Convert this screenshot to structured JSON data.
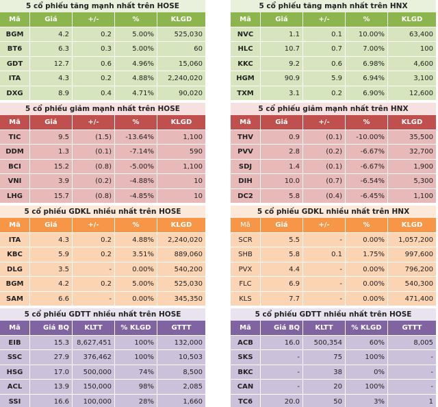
{
  "panels": [
    {
      "title": "5 cổ phiếu tăng mạnh nhất trên HOSE",
      "headers": [
        "Mã",
        "Giá",
        "+/-",
        "%",
        "KLGD"
      ],
      "rows": [
        [
          "BGM",
          "4.2",
          "0.2",
          "5.00%",
          "525,030"
        ],
        [
          "BT6",
          "6.3",
          "0.3",
          "5.00%",
          "60"
        ],
        [
          "GDT",
          "12.7",
          "0.6",
          "4.96%",
          "15,060"
        ],
        [
          "ITA",
          "4.3",
          "0.2",
          "4.88%",
          "2,240,020"
        ],
        [
          "DXG",
          "8.9",
          "0.4",
          "4.71%",
          "90,020"
        ]
      ]
    },
    {
      "title": "5 cổ phiếu tăng mạnh nhất trên HNX",
      "headers": [
        "Mã",
        "Giá",
        "+/-",
        "%",
        "KLGD"
      ],
      "rows": [
        [
          "NVC",
          "1.1",
          "0.1",
          "10.00%",
          "63,400"
        ],
        [
          "HLC",
          "10.7",
          "0.7",
          "7.00%",
          "100"
        ],
        [
          "KKC",
          "9.2",
          "0.6",
          "6.98%",
          "4,600"
        ],
        [
          "HGM",
          "90.9",
          "5.9",
          "6.94%",
          "3,100"
        ],
        [
          "TXM",
          "3.1",
          "0.2",
          "6.90%",
          "12,600"
        ]
      ]
    },
    {
      "title": "5 cổ phiếu giảm mạnh nhất trên HOSE",
      "headers": [
        "Mã",
        "Giá",
        "+/-",
        "%",
        "KLGD"
      ],
      "rows": [
        [
          "TIC",
          "9.5",
          "(1.5)",
          "-13.64%",
          "1,100"
        ],
        [
          "DDM",
          "1.3",
          "(0.1)",
          "-7.14%",
          "590"
        ],
        [
          "BCI",
          "15.2",
          "(0.8)",
          "-5.00%",
          "1,100"
        ],
        [
          "VNI",
          "3.9",
          "(0.2)",
          "-4.88%",
          "10"
        ],
        [
          "LHG",
          "15.7",
          "(0.8)",
          "-4.85%",
          "10"
        ]
      ]
    },
    {
      "title": "5 cổ phiếu giảm mạnh nhất trên HNX",
      "headers": [
        "Mã",
        "Giá",
        "+/-",
        "%",
        "KLGD"
      ],
      "rows": [
        [
          "THV",
          "0.9",
          "(0.1)",
          "-10.00%",
          "35,500"
        ],
        [
          "PVV",
          "2.8",
          "(0.2)",
          "-6.67%",
          "32,700"
        ],
        [
          "SDJ",
          "1.4",
          "(0.1)",
          "-6.67%",
          "1,900"
        ],
        [
          "DIH",
          "10.0",
          "(0.7)",
          "-6.54%",
          "5,300"
        ],
        [
          "DC2",
          "5.8",
          "(0.4)",
          "-6.45%",
          "1,100"
        ]
      ]
    },
    {
      "title": "5 cổ phiếu GDKL nhiều nhất trên HOSE",
      "headers": [
        "Mã",
        "Giá",
        "+/-",
        "%",
        "KLGD"
      ],
      "rows": [
        [
          "ITA",
          "4.3",
          "0.2",
          "4.88%",
          "2,240,020"
        ],
        [
          "KBC",
          "5.9",
          "0.2",
          "3.51%",
          "889,060"
        ],
        [
          "DLG",
          "3.5",
          "-",
          "0.00%",
          "540,200"
        ],
        [
          "BGM",
          "4.2",
          "0.2",
          "5.00%",
          "525,030"
        ],
        [
          "SAM",
          "6.6",
          "-",
          "0.00%",
          "345,350"
        ]
      ]
    },
    {
      "title": "5 cổ phiếu GDKL nhiều nhất trên HNX",
      "headers": [
        "Mã",
        "Giá",
        "+/-",
        "%",
        "KLGD"
      ],
      "rows": [
        [
          "SCR",
          "5.5",
          "-",
          "0.00%",
          "1,057,200"
        ],
        [
          "SHB",
          "5.8",
          "0.1",
          "1.75%",
          "997,600"
        ],
        [
          "PVX",
          "4.4",
          "-",
          "0.00%",
          "796,200"
        ],
        [
          "FLC",
          "6.9",
          "-",
          "0.00%",
          "540,300"
        ],
        [
          "KLS",
          "7.7",
          "-",
          "0.00%",
          "471,400"
        ]
      ]
    },
    {
      "title": "5 cổ phiếu GDTT nhiều nhất trên HOSE",
      "headers": [
        "Mã",
        "Giá BQ",
        "KLTT",
        "% KLGD",
        "GTTT"
      ],
      "rows": [
        [
          "EIB",
          "15.3",
          "8,627,451",
          "100%",
          "132,000"
        ],
        [
          "SSC",
          "27.9",
          "376,462",
          "100%",
          "10,503"
        ],
        [
          "HSG",
          "17.0",
          "500,000",
          "74%",
          "8,500"
        ],
        [
          "ACL",
          "13.9",
          "150,000",
          "98%",
          "2,085"
        ],
        [
          "SSI",
          "16.6",
          "100,000",
          "28%",
          "1,660"
        ]
      ]
    },
    {
      "title": "5 cổ phiếu GDTT nhiều nhất trên HOSE",
      "headers": [
        "Mã",
        "Giá BQ",
        "KLTT",
        "% KLGD",
        "GTTT"
      ],
      "rows": [
        [
          "ACB",
          "16.0",
          "500,354",
          "60%",
          "8,005"
        ],
        [
          "SKS",
          "-",
          "75",
          "100%",
          "-"
        ],
        [
          "BKC",
          "-",
          "38",
          "0%",
          "-"
        ],
        [
          "CAN",
          "-",
          "20",
          "100%",
          "-"
        ],
        [
          "TC6",
          "20.0",
          "50",
          "3%",
          "1"
        ]
      ]
    }
  ]
}
